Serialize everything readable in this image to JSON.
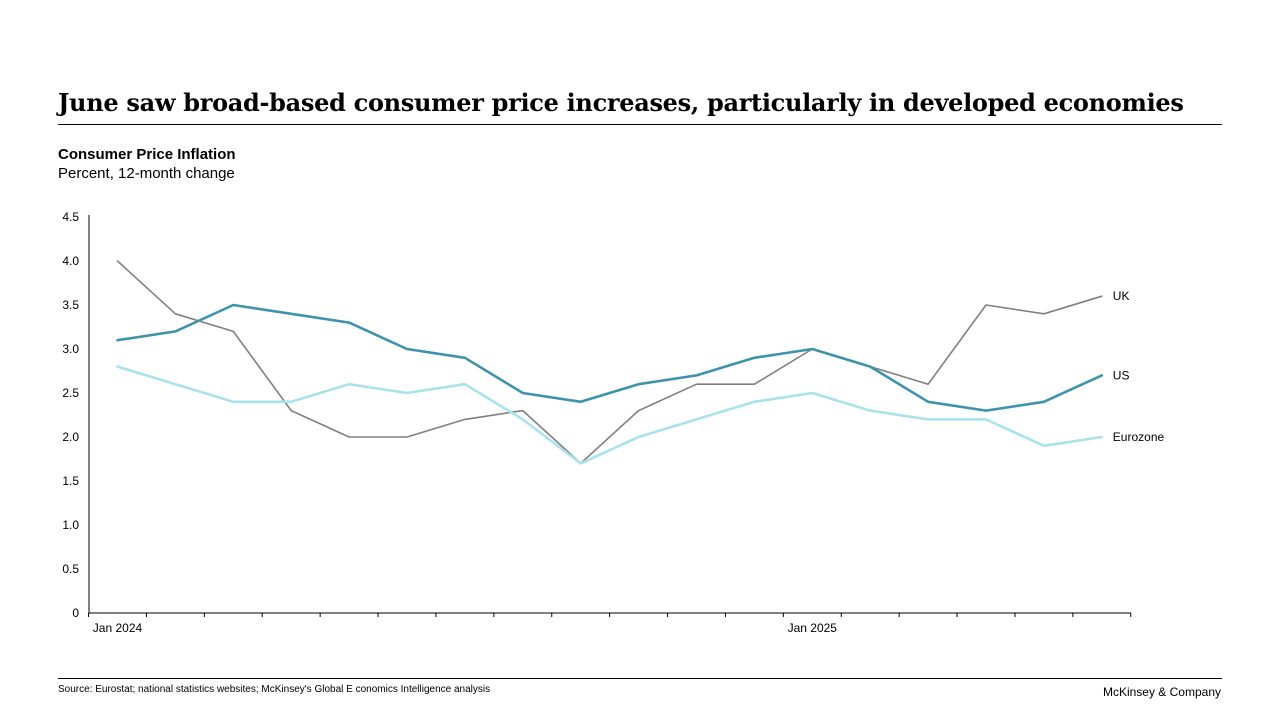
{
  "headline": "June saw broad-based consumer price increases, particularly in developed economies",
  "footer": {
    "source": "Source: Eurostat; national statistics websites; McKinsey's Global E conomics Intelligence analysis",
    "brand": "McKinsey & Company"
  },
  "chart_data": {
    "type": "line",
    "title": "Consumer Price Inflation",
    "subtitle": "Percent, 12-month change",
    "xlabel": "",
    "ylabel": "",
    "ylim": [
      0,
      4.5
    ],
    "yticks": [
      {
        "value": 0,
        "label": "0"
      },
      {
        "value": 0.5,
        "label": "0.5"
      },
      {
        "value": 1.0,
        "label": "1.0"
      },
      {
        "value": 1.5,
        "label": "1.5"
      },
      {
        "value": 2.0,
        "label": "2.0"
      },
      {
        "value": 2.5,
        "label": "2.5"
      },
      {
        "value": 3.0,
        "label": "3.0"
      },
      {
        "value": 3.5,
        "label": "3.5"
      },
      {
        "value": 4.0,
        "label": "4.0"
      },
      {
        "value": 4.5,
        "label": "4.5"
      }
    ],
    "x_count": 18,
    "x_labels": [
      {
        "index": 0,
        "label": "Jan 2024"
      },
      {
        "index": 12,
        "label": "Jan 2025"
      }
    ],
    "grid": false,
    "series": [
      {
        "name": "UK",
        "color": "#808080",
        "width": 1.6,
        "values": [
          4.0,
          3.4,
          3.2,
          2.3,
          2.0,
          2.0,
          2.2,
          2.3,
          1.7,
          2.3,
          2.6,
          2.6,
          3.0,
          2.8,
          2.6,
          3.5,
          3.4,
          3.6
        ]
      },
      {
        "name": "US",
        "color": "#3d93ad",
        "width": 2.6,
        "values": [
          3.1,
          3.2,
          3.5,
          3.4,
          3.3,
          3.0,
          2.9,
          2.5,
          2.4,
          2.6,
          2.7,
          2.9,
          3.0,
          2.8,
          2.4,
          2.3,
          2.4,
          2.7
        ]
      },
      {
        "name": "Eurozone",
        "color": "#a8e2ec",
        "width": 2.6,
        "values": [
          2.8,
          2.6,
          2.4,
          2.4,
          2.6,
          2.5,
          2.6,
          2.2,
          1.7,
          2.0,
          2.2,
          2.4,
          2.5,
          2.3,
          2.2,
          2.2,
          1.9,
          2.0
        ]
      }
    ]
  }
}
